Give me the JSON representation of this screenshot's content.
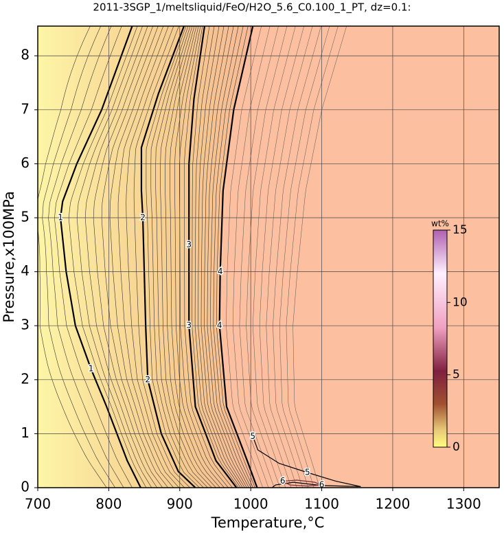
{
  "chart_data": {
    "type": "contour",
    "title": "2011-3SGP_1/meltsliquid/FeO/H2O_5.6_C0.100_1_PT, dz=0.1:",
    "xlabel": "Temperature,°C",
    "ylabel": "Pressure,x100MPa",
    "xlim": [
      700,
      1350
    ],
    "ylim": [
      0,
      8.55
    ],
    "xticks": [
      700,
      800,
      900,
      1000,
      1100,
      1200,
      1300
    ],
    "yticks": [
      0,
      1,
      2,
      3,
      4,
      5,
      6,
      7,
      8
    ],
    "grid": true,
    "series": [
      {
        "name": "1",
        "color": "#000000",
        "x": [
          833,
          790,
          755,
          735,
          732,
          740,
          753,
          775,
          797,
          826,
          845
        ],
        "values": [
          8.55,
          7,
          6,
          5.3,
          5,
          4,
          3,
          2.2,
          1.5,
          0.5,
          0
        ]
      },
      {
        "name": "2",
        "color": "#000000",
        "x": [
          906,
          870,
          846,
          846,
          848,
          852,
          855,
          874,
          898,
          922
        ],
        "values": [
          8.55,
          7.3,
          6.3,
          5.5,
          5,
          3,
          2,
          1,
          0.3,
          0
        ]
      },
      {
        "name": "3",
        "color": "#000000",
        "x": [
          935,
          920,
          913,
          913,
          913,
          922,
          951,
          980
        ],
        "values": [
          8.55,
          7.2,
          6,
          4.5,
          3,
          1.5,
          0.5,
          0
        ]
      },
      {
        "name": "4",
        "color": "#000000",
        "x": [
          1003,
          976,
          961,
          957,
          956,
          966,
          995,
          1009
        ],
        "values": [
          8.55,
          7,
          5.5,
          4,
          3,
          1.5,
          0.5,
          0
        ]
      },
      {
        "name": "5",
        "color": "#000000",
        "x": [
          1003,
          1010,
          1040,
          1080,
          1120,
          1155,
          1100,
          1060,
          1035,
          1030
        ],
        "values": [
          0.95,
          0.7,
          0.45,
          0.28,
          0.12,
          0.02,
          0.04,
          0.1,
          0.05,
          0
        ]
      },
      {
        "name": "6",
        "color": "#7a2a3a",
        "x": [
          1045,
          1065,
          1090,
          1100,
          1080,
          1055,
          1045
        ],
        "values": [
          0.12,
          0.14,
          0.1,
          0.05,
          0.03,
          0.05,
          0.12
        ]
      }
    ],
    "colorbar": {
      "label": "wt%",
      "lim": [
        0,
        15
      ],
      "ticks": [
        0,
        5,
        10,
        15
      ]
    }
  }
}
